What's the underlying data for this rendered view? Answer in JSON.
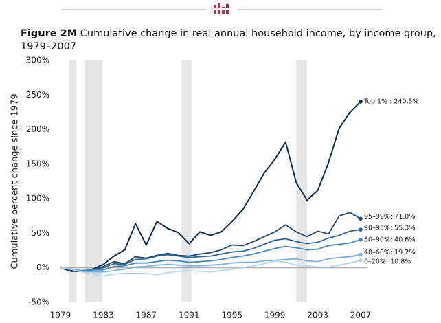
{
  "chart_data": {
    "type": "line",
    "figure_label": "Figure 2M",
    "title": "Cumulative change in real annual household income, by income group, 1979–2007",
    "y_label": "Cumulative percent change since 1979",
    "x": [
      1979,
      1980,
      1981,
      1982,
      1983,
      1984,
      1985,
      1986,
      1987,
      1988,
      1989,
      1990,
      1991,
      1992,
      1993,
      1994,
      1995,
      1996,
      1997,
      1998,
      1999,
      2000,
      2001,
      2002,
      2003,
      2004,
      2005,
      2006,
      2007
    ],
    "xlim": [
      1979,
      2007
    ],
    "xticks": [
      1979,
      1983,
      1987,
      1991,
      1995,
      1999,
      2003,
      2007
    ],
    "ylim": [
      -50,
      300
    ],
    "yticks": [
      {
        "value": -50,
        "label": "-50%"
      },
      {
        "value": 0,
        "label": "0%"
      },
      {
        "value": 50,
        "label": "50%"
      },
      {
        "value": 100,
        "label": "100%"
      },
      {
        "value": 150,
        "label": "150%"
      },
      {
        "value": 200,
        "label": "200%"
      },
      {
        "value": 250,
        "label": "250%"
      },
      {
        "value": 300,
        "label": "300%"
      }
    ],
    "recessions": [
      [
        1979.8,
        1980.5
      ],
      [
        1981.3,
        1982.9
      ],
      [
        1990.3,
        1991.2
      ],
      [
        2001.0,
        2002.0
      ]
    ],
    "series": [
      {
        "name": "Top 1% : 240.5%",
        "color": "#0f2b46",
        "values": [
          0,
          -5,
          -5,
          -2,
          5,
          17,
          26,
          64,
          33,
          67,
          57,
          51,
          35,
          52,
          47,
          52,
          67,
          84,
          110,
          137,
          157,
          182,
          123,
          98,
          112,
          152,
          202,
          225,
          240.5
        ]
      },
      {
        "name": "95–99%: 71.0%",
        "color": "#1f4568",
        "values": [
          0,
          -4,
          -5,
          -3,
          2,
          9,
          6,
          16,
          14,
          18,
          21,
          18,
          17,
          20,
          22,
          26,
          33,
          32,
          38,
          45,
          52,
          62,
          52,
          45,
          53,
          49,
          75,
          80,
          71.0
        ]
      },
      {
        "name": "90–95%: 55.3%",
        "color": "#2e6591",
        "values": [
          0,
          -3,
          -4,
          -3,
          0,
          6,
          5,
          12,
          13,
          17,
          19,
          17,
          15,
          16,
          17,
          20,
          23,
          24,
          28,
          34,
          40,
          42,
          38,
          35,
          37,
          43,
          47,
          53,
          55.3
        ]
      },
      {
        "name": "80–90%: 40.6%",
        "color": "#4a88b8",
        "values": [
          0,
          -2,
          -4,
          -3,
          -3,
          2,
          3,
          7,
          7,
          9,
          11,
          10,
          8,
          9,
          10,
          12,
          15,
          17,
          20,
          24,
          28,
          31,
          29,
          26,
          27,
          32,
          34,
          36,
          40.6
        ]
      },
      {
        "name": "40–60%: 19.2%",
        "color": "#7db2da",
        "values": [
          0,
          -2,
          -5,
          -6,
          -6,
          -4,
          -2,
          1,
          2,
          4,
          5,
          4,
          3,
          3,
          4,
          5,
          7,
          8,
          8,
          10,
          11,
          12,
          13,
          10,
          9,
          13,
          15,
          16,
          19.2
        ]
      },
      {
        "name": "0–20%: 10.8%",
        "color": "#b5d5ee",
        "values": [
          0,
          -2,
          -6,
          -9,
          -12,
          -9,
          -8,
          -8,
          -8,
          -10,
          -7,
          -5,
          -4,
          -5,
          -6,
          -4,
          -2,
          0,
          3,
          6,
          10,
          8,
          4,
          3,
          1,
          1,
          4,
          7,
          10.8
        ]
      }
    ]
  }
}
